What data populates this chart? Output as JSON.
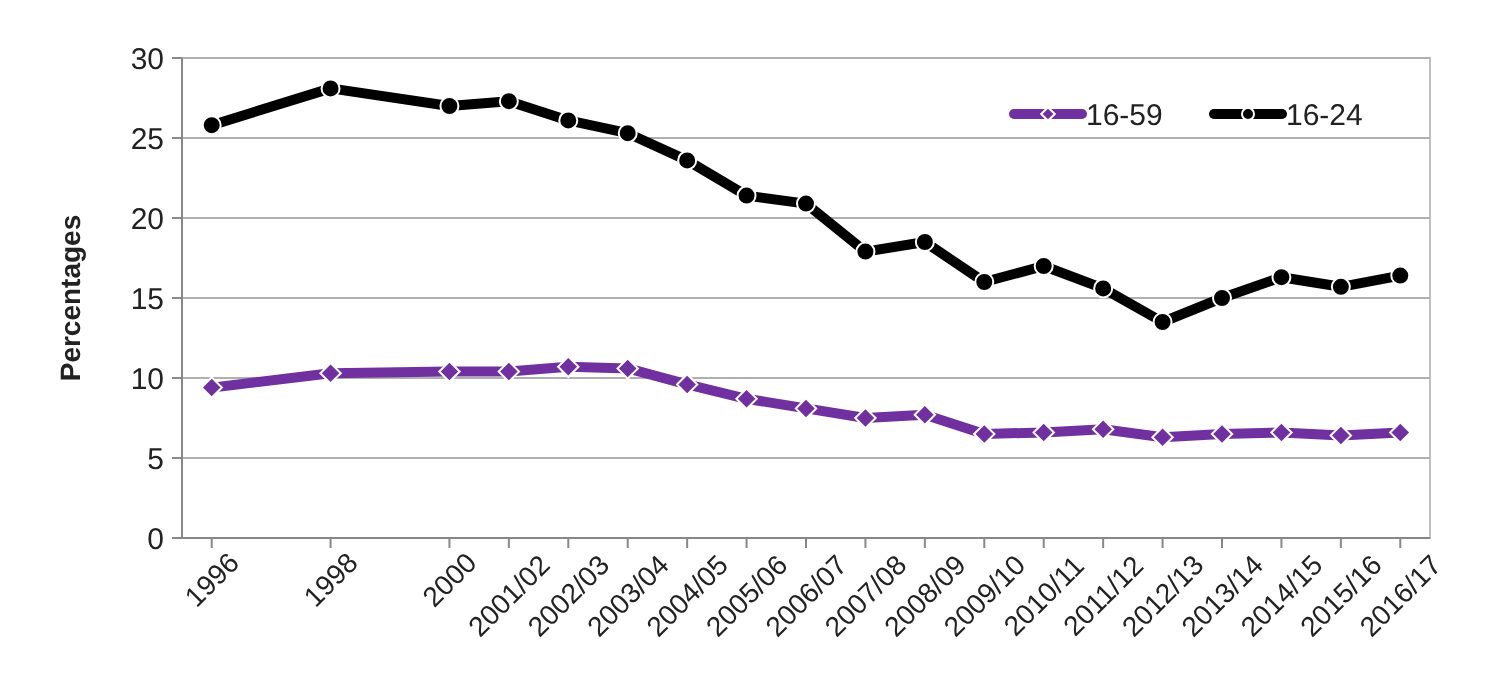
{
  "chart_data": {
    "type": "line",
    "ylabel": "Percentages",
    "x": [
      1996,
      1998,
      2000,
      2001,
      2002,
      2003,
      2004,
      2005,
      2006,
      2007,
      2008,
      2009,
      2010,
      2011,
      2012,
      2013,
      2014,
      2015,
      2016
    ],
    "xlim": [
      1995.5,
      2016.5
    ],
    "xticks": [
      1996,
      1998,
      2000,
      {
        "value": 2001,
        "label": "2001/02"
      },
      {
        "value": 2002,
        "label": "2002/03"
      },
      {
        "value": 2003,
        "label": "2003/04"
      },
      {
        "value": 2004,
        "label": "2004/05"
      },
      {
        "value": 2005,
        "label": "2005/06"
      },
      {
        "value": 2006,
        "label": "2006/07"
      },
      {
        "value": 2007,
        "label": "2007/08"
      },
      {
        "value": 2008,
        "label": "2008/09"
      },
      {
        "value": 2009,
        "label": "2009/10"
      },
      {
        "value": 2010,
        "label": "2010/11"
      },
      {
        "value": 2011,
        "label": "2011/12"
      },
      {
        "value": 2012,
        "label": "2012/13"
      },
      {
        "value": 2013,
        "label": "2013/14"
      },
      {
        "value": 2014,
        "label": "2014/15"
      },
      {
        "value": 2015,
        "label": "2015/16"
      },
      {
        "value": 2016,
        "label": "2016/17"
      }
    ],
    "series": [
      {
        "name": "16-59",
        "color": "#7030a0",
        "marker": "diamond",
        "values": [
          9.4,
          10.3,
          10.4,
          10.4,
          10.7,
          10.6,
          9.6,
          8.7,
          8.1,
          7.5,
          7.7,
          6.5,
          6.6,
          6.8,
          6.3,
          6.5,
          6.6,
          6.4,
          6.6
        ]
      },
      {
        "name": "16-24",
        "color": "#000000",
        "marker": "circle",
        "values": [
          25.8,
          28.1,
          27.0,
          27.3,
          26.1,
          25.3,
          23.6,
          21.4,
          20.9,
          17.9,
          18.5,
          16.0,
          17.0,
          15.6,
          13.5,
          15.0,
          16.3,
          15.7,
          16.4
        ]
      }
    ],
    "ylim": [
      0,
      30
    ],
    "yticks": [
      0,
      5,
      10,
      15,
      20,
      25,
      30
    ],
    "grid": "y",
    "legend": "top right"
  }
}
